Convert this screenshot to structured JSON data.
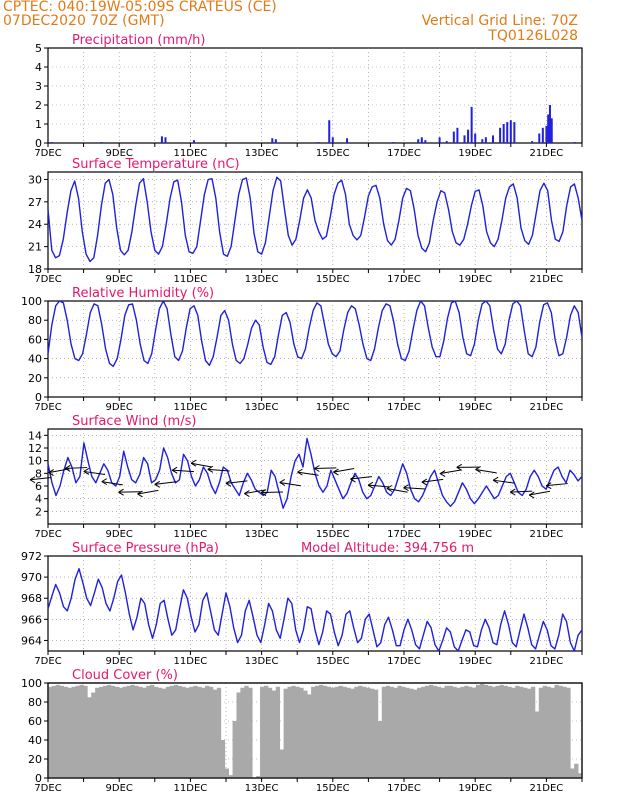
{
  "header": {
    "line1": "CPTEC:   040:19W-05:09S   CRATEUS (CE)",
    "line2": "07DEC2020 70Z (GMT)",
    "right1": "Vertical Grid Line: 70Z",
    "right2": "TQ0126L028"
  },
  "colors": {
    "series": "#2020dd",
    "cloud": "#a9a9a9",
    "title": "#e6186e",
    "header": "#e07b1a",
    "grid": "#888888"
  },
  "chart_data": [
    {
      "id": "precip",
      "type": "bar",
      "title": "Precipitation (mm/h)",
      "ylim": [
        0,
        5
      ],
      "yticks": [
        0,
        1,
        2,
        3,
        4,
        5
      ],
      "x_tick_labels": [
        "7DEC",
        "9DEC",
        "11DEC",
        "13DEC",
        "15DEC",
        "17DEC",
        "19DEC",
        "21DEC"
      ],
      "x_range_days": [
        7,
        22
      ],
      "grid": true,
      "values_by_day": [
        [
          7.1,
          0.05
        ],
        [
          8.5,
          0.05
        ],
        [
          10.2,
          0.35
        ],
        [
          10.3,
          0.3
        ],
        [
          11.1,
          0.15
        ],
        [
          13.3,
          0.25
        ],
        [
          13.4,
          0.2
        ],
        [
          14.6,
          0.05
        ],
        [
          14.9,
          1.2
        ],
        [
          15.0,
          0.3
        ],
        [
          15.4,
          0.25
        ],
        [
          16.7,
          0.05
        ],
        [
          17.4,
          0.2
        ],
        [
          17.5,
          0.3
        ],
        [
          17.6,
          0.15
        ],
        [
          18.0,
          0.3
        ],
        [
          18.2,
          0.1
        ],
        [
          18.4,
          0.6
        ],
        [
          18.5,
          0.8
        ],
        [
          18.7,
          0.4
        ],
        [
          18.8,
          0.7
        ],
        [
          18.9,
          1.9
        ],
        [
          19.0,
          0.5
        ],
        [
          19.2,
          0.2
        ],
        [
          19.3,
          0.3
        ],
        [
          19.5,
          0.4
        ],
        [
          19.7,
          0.8
        ],
        [
          19.8,
          1.0
        ],
        [
          19.9,
          1.1
        ],
        [
          20.0,
          1.2
        ],
        [
          20.1,
          1.1
        ],
        [
          20.6,
          0.1
        ],
        [
          20.8,
          0.5
        ],
        [
          20.9,
          0.8
        ],
        [
          21.0,
          0.9
        ],
        [
          21.05,
          1.5
        ],
        [
          21.1,
          2.0
        ],
        [
          21.15,
          1.3
        ],
        [
          21.8,
          0.05
        ]
      ]
    },
    {
      "id": "temp",
      "type": "line",
      "title": "Surface Temperature (nC)",
      "ylim": [
        18,
        31
      ],
      "yticks": [
        18,
        21,
        24,
        27,
        30
      ],
      "x_tick_labels": [
        "7DEC",
        "9DEC",
        "11DEC",
        "13DEC",
        "15DEC",
        "17DEC",
        "19DEC",
        "21DEC"
      ],
      "x_range_days": [
        7,
        22
      ],
      "grid": true,
      "daily_max": [
        29.8,
        30.0,
        30.1,
        29.9,
        30.1,
        30.2,
        30.3,
        28.6,
        29.9,
        29.2,
        28.8,
        28.5,
        28.6,
        29.4,
        29.5
      ],
      "daily_min": [
        19.5,
        19.0,
        19.9,
        20.0,
        20.1,
        19.7,
        20.0,
        22.0,
        21.9,
        21.2,
        20.3,
        21.2,
        21.0,
        21.3,
        21.7
      ],
      "values": [
        26.0,
        20.5,
        19.5,
        19.8,
        22.0,
        25.5,
        28.5,
        29.8,
        27.5,
        23.0,
        20.0,
        19.0,
        19.5,
        22.5,
        26.5,
        29.5,
        30.0,
        28.0,
        23.5,
        20.5,
        19.9,
        20.5,
        23.0,
        26.5,
        29.5,
        30.1,
        27.0,
        23.0,
        20.5,
        20.0,
        21.0,
        24.0,
        27.5,
        29.7,
        29.9,
        27.0,
        22.5,
        20.3,
        20.1,
        21.0,
        24.5,
        28.0,
        30.0,
        30.1,
        27.5,
        23.0,
        20.0,
        19.7,
        21.0,
        24.5,
        28.0,
        30.0,
        30.2,
        27.5,
        22.8,
        20.3,
        20.0,
        21.5,
        25.0,
        28.5,
        30.3,
        29.8,
        26.0,
        22.5,
        21.2,
        22.0,
        24.5,
        27.5,
        28.6,
        27.5,
        24.5,
        23.0,
        22.0,
        22.4,
        25.0,
        28.0,
        29.5,
        29.9,
        28.0,
        24.0,
        22.5,
        21.9,
        22.5,
        25.0,
        27.8,
        29.0,
        29.2,
        27.5,
        24.0,
        21.8,
        21.2,
        22.0,
        24.5,
        27.5,
        28.8,
        28.5,
        26.0,
        22.5,
        20.8,
        20.3,
        21.5,
        24.5,
        27.0,
        28.5,
        28.2,
        26.0,
        23.0,
        21.5,
        21.2,
        22.0,
        24.0,
        26.5,
        28.4,
        28.6,
        26.5,
        23.0,
        21.5,
        21.0,
        22.0,
        24.5,
        27.5,
        29.0,
        29.4,
        27.5,
        23.5,
        21.8,
        21.3,
        22.5,
        25.5,
        28.5,
        29.5,
        28.5,
        24.5,
        22.0,
        21.7,
        23.0,
        26.5,
        29.0,
        29.4,
        27.5,
        24.5
      ]
    },
    {
      "id": "rh",
      "type": "line",
      "title": "Relative Humidity (%)",
      "ylim": [
        0,
        100
      ],
      "yticks": [
        0,
        20,
        40,
        60,
        80,
        100
      ],
      "x_tick_labels": [
        "7DEC",
        "9DEC",
        "11DEC",
        "13DEC",
        "15DEC",
        "17DEC",
        "19DEC",
        "21DEC"
      ],
      "x_range_days": [
        7,
        22
      ],
      "grid": true,
      "values": [
        45,
        75,
        95,
        100,
        98,
        80,
        55,
        40,
        38,
        45,
        65,
        88,
        97,
        95,
        75,
        50,
        35,
        32,
        40,
        60,
        85,
        96,
        97,
        80,
        55,
        38,
        35,
        45,
        70,
        92,
        100,
        92,
        65,
        42,
        38,
        48,
        72,
        92,
        95,
        85,
        58,
        38,
        33,
        42,
        62,
        85,
        90,
        80,
        55,
        38,
        35,
        40,
        55,
        72,
        80,
        75,
        52,
        36,
        34,
        42,
        65,
        85,
        88,
        78,
        55,
        42,
        40,
        50,
        72,
        90,
        98,
        95,
        75,
        55,
        45,
        42,
        48,
        70,
        88,
        95,
        92,
        75,
        55,
        40,
        38,
        50,
        72,
        90,
        97,
        95,
        78,
        55,
        40,
        38,
        48,
        70,
        90,
        100,
        95,
        72,
        52,
        42,
        42,
        58,
        82,
        98,
        100,
        88,
        62,
        45,
        43,
        55,
        80,
        97,
        100,
        95,
        70,
        50,
        45,
        55,
        80,
        97,
        100,
        95,
        68,
        45,
        42,
        52,
        78,
        96,
        98,
        88,
        60,
        43,
        45,
        62,
        85,
        95,
        88,
        62
      ]
    },
    {
      "id": "wind",
      "type": "line",
      "title": "Surface Wind (m/s)",
      "ylim": [
        0,
        15
      ],
      "yticks": [
        2,
        4,
        6,
        8,
        10,
        12,
        14
      ],
      "x_tick_labels": [
        "7DEC",
        "9DEC",
        "11DEC",
        "13DEC",
        "15DEC",
        "17DEC",
        "19DEC",
        "21DEC"
      ],
      "x_range_days": [
        7,
        22
      ],
      "grid": true,
      "values": [
        9.5,
        6.5,
        4.5,
        6.0,
        8.5,
        10.5,
        9.0,
        6.5,
        7.5,
        12.8,
        10.0,
        7.5,
        6.5,
        8.0,
        9.5,
        8.5,
        6.5,
        6.0,
        7.5,
        11.5,
        9.0,
        7.0,
        6.5,
        7.8,
        10.5,
        9.5,
        6.5,
        7.0,
        8.5,
        12.0,
        10.5,
        8.0,
        6.5,
        7.0,
        11.0,
        10.0,
        7.5,
        6.0,
        7.0,
        9.0,
        8.0,
        6.0,
        4.8,
        6.5,
        9.0,
        8.5,
        6.5,
        5.5,
        4.5,
        6.5,
        8.0,
        7.0,
        5.5,
        5.0,
        4.5,
        5.0,
        8.5,
        7.5,
        5.0,
        2.5,
        4.0,
        7.5,
        10.0,
        11.0,
        9.0,
        13.5,
        11.0,
        8.0,
        6.0,
        5.0,
        6.0,
        8.5,
        7.0,
        5.5,
        4.0,
        4.8,
        6.5,
        8.0,
        7.0,
        5.0,
        4.0,
        4.5,
        6.0,
        7.5,
        6.5,
        5.0,
        4.5,
        5.5,
        7.5,
        9.5,
        8.0,
        5.5,
        4.0,
        3.5,
        4.5,
        6.0,
        7.5,
        8.5,
        6.5,
        4.5,
        3.5,
        2.8,
        3.5,
        5.0,
        6.5,
        5.5,
        4.0,
        3.2,
        4.0,
        5.0,
        6.0,
        5.0,
        4.0,
        4.5,
        6.0,
        7.5,
        8.0,
        6.5,
        5.0,
        4.5,
        5.5,
        7.5,
        8.5,
        7.5,
        6.0,
        5.5,
        7.0,
        8.5,
        9.0,
        7.5,
        6.5,
        8.5,
        7.8,
        6.8,
        7.5
      ]
    },
    {
      "id": "pressure",
      "type": "line",
      "title": "Surface Pressure (hPa)",
      "annotation": "Model Altitude: 394.756 m",
      "ylim": [
        963,
        972
      ],
      "yticks": [
        964,
        966,
        968,
        970,
        972
      ],
      "x_tick_labels": [
        "7DEC",
        "9DEC",
        "11DEC",
        "13DEC",
        "15DEC",
        "17DEC",
        "19DEC",
        "21DEC"
      ],
      "x_range_days": [
        7,
        22
      ],
      "grid": true,
      "values": [
        967.0,
        968.2,
        969.3,
        968.5,
        967.2,
        966.8,
        968.0,
        969.8,
        970.8,
        969.5,
        968.0,
        967.3,
        968.5,
        969.8,
        969.0,
        967.5,
        966.8,
        968.0,
        969.6,
        970.2,
        968.5,
        966.5,
        965.0,
        966.2,
        968.0,
        967.5,
        965.5,
        964.2,
        965.5,
        967.5,
        967.8,
        966.0,
        964.5,
        965.0,
        967.0,
        968.8,
        968.0,
        966.2,
        964.8,
        965.5,
        967.8,
        968.5,
        966.8,
        965.0,
        964.5,
        966.5,
        968.5,
        967.2,
        965.2,
        963.8,
        964.5,
        966.8,
        967.8,
        966.2,
        964.5,
        963.8,
        965.5,
        967.5,
        966.8,
        965.0,
        964.2,
        966.0,
        968.0,
        967.5,
        965.0,
        963.8,
        965.0,
        967.2,
        967.0,
        965.0,
        963.6,
        964.8,
        966.8,
        966.5,
        964.8,
        963.5,
        964.5,
        966.5,
        966.8,
        965.2,
        963.8,
        964.2,
        966.0,
        966.5,
        965.0,
        963.4,
        963.8,
        965.5,
        966.2,
        965.0,
        963.5,
        963.5,
        965.0,
        966.0,
        965.0,
        963.6,
        963.2,
        964.5,
        965.8,
        965.2,
        963.6,
        963.0,
        964.0,
        965.2,
        964.8,
        963.4,
        963.0,
        964.0,
        965.0,
        964.8,
        963.5,
        963.4,
        965.0,
        966.0,
        965.2,
        963.8,
        963.6,
        965.5,
        966.8,
        965.5,
        963.8,
        963.4,
        965.0,
        966.5,
        965.2,
        963.6,
        963.2,
        964.5,
        965.8,
        965.0,
        963.5,
        963.2,
        964.5,
        966.5,
        965.8,
        963.8,
        963.0,
        964.5,
        965.0
      ]
    },
    {
      "id": "cloud",
      "type": "bar",
      "title": "Cloud Cover (%)",
      "ylim": [
        0,
        100
      ],
      "yticks": [
        0,
        20,
        40,
        60,
        80,
        100
      ],
      "x_tick_labels": [
        "7DEC",
        "9DEC",
        "11DEC",
        "13DEC",
        "15DEC",
        "17DEC",
        "19DEC",
        "21DEC"
      ],
      "x_range_days": [
        7,
        22
      ],
      "grid": true,
      "values": [
        96,
        97,
        98,
        97,
        96,
        95,
        96,
        97,
        98,
        97,
        85,
        90,
        95,
        96,
        97,
        98,
        97,
        96,
        95,
        96,
        97,
        98,
        97,
        96,
        95,
        97,
        98,
        96,
        95,
        94,
        96,
        97,
        98,
        97,
        96,
        95,
        96,
        97,
        96,
        95,
        97,
        96,
        93,
        95,
        40,
        10,
        3,
        60,
        90,
        95,
        97,
        95,
        0,
        2,
        96,
        97,
        95,
        92,
        96,
        30,
        94,
        96,
        97,
        96,
        95,
        92,
        88,
        96,
        97,
        98,
        97,
        96,
        95,
        96,
        97,
        96,
        95,
        94,
        96,
        97,
        96,
        95,
        94,
        93,
        60,
        96,
        97,
        96,
        95,
        97,
        96,
        95,
        94,
        93,
        95,
        96,
        97,
        98,
        97,
        96,
        95,
        97,
        97,
        96,
        95,
        96,
        97,
        96,
        95,
        98,
        99,
        98,
        97,
        96,
        97,
        98,
        97,
        96,
        95,
        97,
        96,
        95,
        94,
        96,
        70,
        95,
        97,
        96,
        95,
        98,
        97,
        96,
        95,
        10,
        15,
        5
      ]
    }
  ]
}
